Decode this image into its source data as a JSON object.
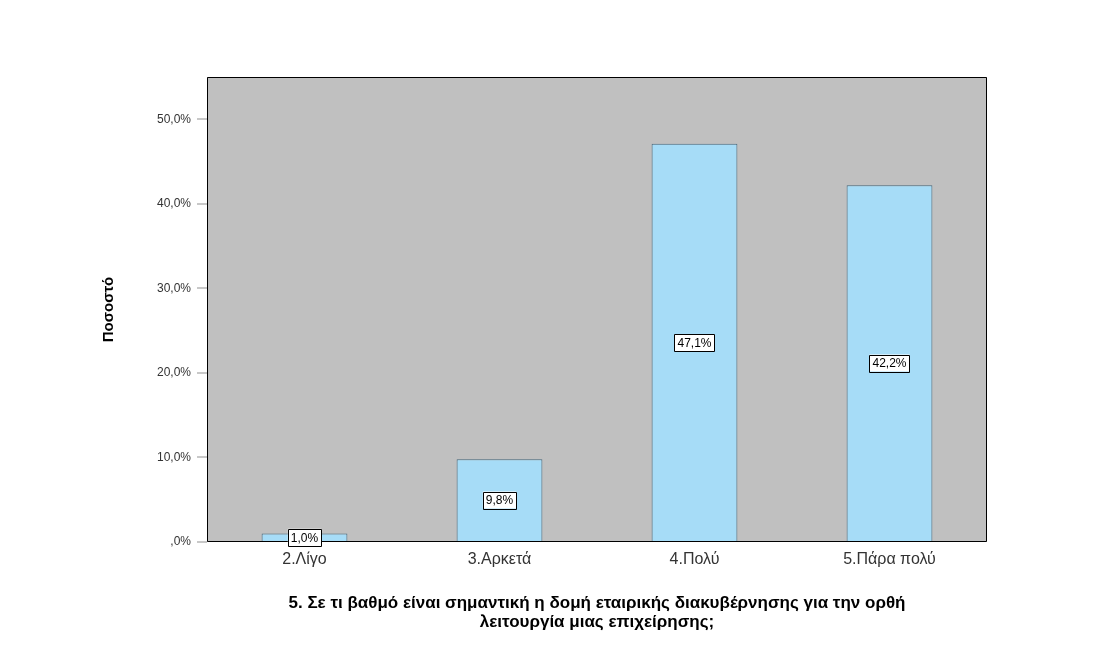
{
  "chart_data": {
    "type": "bar",
    "xlabel": "5. Σε τι βαθμό είναι σημαντική η δομή εταιρικής διακυβέρνησης για την ορθή λειτουργία μιας επιχείρησης;",
    "ylabel": "Ποσοστό",
    "categories": [
      "2.Λίγο",
      "3.Αρκετά",
      "4.Πολύ",
      "5.Πάρα πολύ"
    ],
    "values": [
      1.0,
      9.8,
      47.1,
      42.2
    ],
    "value_labels": [
      "1,0%",
      "9,8%",
      "47,1%",
      "42,2%"
    ],
    "color": "#a6dcf7",
    "ylim": [
      0,
      55
    ],
    "yticks": [
      {
        "value": 0,
        "label": ",0%"
      },
      {
        "value": 10,
        "label": "10,0%"
      },
      {
        "value": 20,
        "label": "20,0%"
      },
      {
        "value": 30,
        "label": "30,0%"
      },
      {
        "value": 40,
        "label": "40,0%"
      },
      {
        "value": 50,
        "label": "50,0%"
      }
    ]
  }
}
